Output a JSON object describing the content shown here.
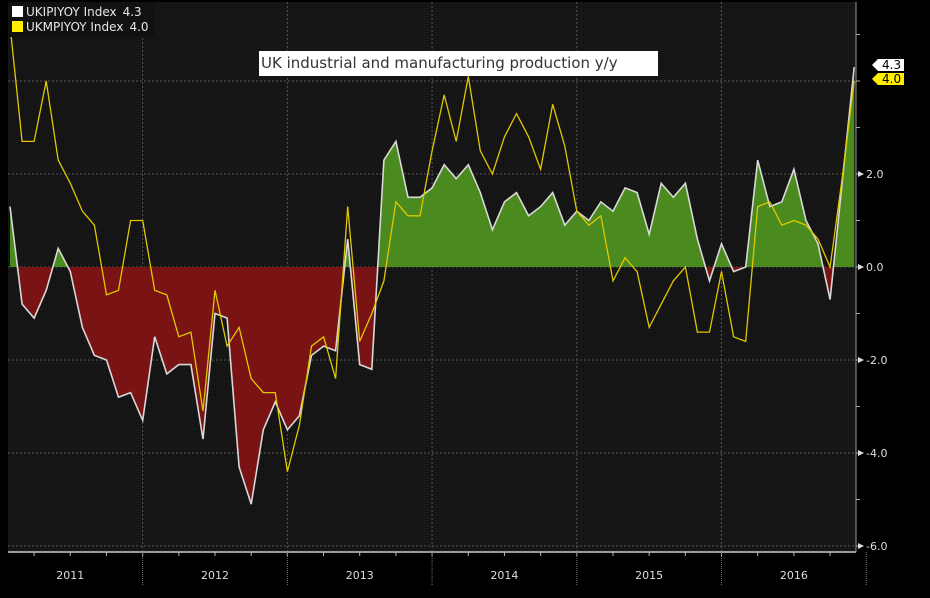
{
  "legend": [
    {
      "name": "UKIPIYOY Index",
      "value": "4.3",
      "color": "#ffffff"
    },
    {
      "name": "UKMPIYOY Index",
      "value": "4.0",
      "color": "#ffee00"
    }
  ],
  "annotation": "UK industrial and manufacturing production y/y",
  "last_value_tags": [
    {
      "label": "4.3",
      "bg": "#ffffff",
      "fg": "#000000"
    },
    {
      "label": "4.0",
      "bg": "#ffee00",
      "fg": "#000000"
    }
  ],
  "colors": {
    "background": "#000000",
    "plot_bg": "#151515",
    "positive_fill": "#4a8a1e",
    "negative_fill": "#7a1414",
    "ukipiyoy_line": "#d8d8d8",
    "ukmpiyoy_line": "#e0c800",
    "grid": "#555555",
    "axis_text": "#dddddd"
  },
  "chart_data": {
    "type": "line",
    "title": "UK industrial and manufacturing production y/y",
    "xlabel": "",
    "ylabel": "",
    "x_start": "2011-02",
    "x_end": "2016-12",
    "frequency": "monthly",
    "x_tick_labels": [
      "2011",
      "2012",
      "2013",
      "2014",
      "2015",
      "2016"
    ],
    "y_ticks": [
      4.0,
      2.0,
      0.0,
      -2.0,
      -4.0,
      -6.0
    ],
    "y_tick_labels": [
      "2.0",
      "0.0",
      "-2.0",
      "-4.0",
      "-6.0"
    ],
    "ylim": [
      -6.0,
      5.7
    ],
    "grid": true,
    "legend_position": "top-left",
    "series": [
      {
        "name": "UKIPIYOY Index",
        "style": "area-filled-vs-zero",
        "last": 4.3,
        "values": [
          1.3,
          -0.8,
          -1.1,
          -0.5,
          0.4,
          -0.1,
          -1.3,
          -1.9,
          -2.0,
          -2.8,
          -2.7,
          -3.3,
          -1.5,
          -2.3,
          -2.1,
          -2.1,
          -3.7,
          -1.0,
          -1.1,
          -4.3,
          -5.1,
          -3.5,
          -2.9,
          -3.5,
          -3.2,
          -1.9,
          -1.7,
          -1.8,
          0.6,
          -2.1,
          -2.2,
          2.3,
          2.7,
          1.5,
          1.5,
          1.7,
          2.2,
          1.9,
          2.2,
          1.6,
          0.8,
          1.4,
          1.6,
          1.1,
          1.3,
          1.6,
          0.9,
          1.2,
          1.0,
          1.4,
          1.2,
          1.7,
          1.6,
          0.7,
          1.8,
          1.5,
          1.8,
          0.6,
          -0.3,
          0.5,
          -0.1,
          0.0,
          2.3,
          1.3,
          1.4,
          2.1,
          1.0,
          0.5,
          -0.7,
          1.8,
          4.3
        ]
      },
      {
        "name": "UKMPIYOY Index",
        "style": "line",
        "last": 4.0,
        "values": [
          5.2,
          2.7,
          2.7,
          4.0,
          2.3,
          1.8,
          1.2,
          0.9,
          -0.6,
          -0.5,
          1.0,
          1.0,
          -0.5,
          -0.6,
          -1.5,
          -1.4,
          -3.1,
          -0.5,
          -1.7,
          -1.3,
          -2.4,
          -2.7,
          -2.7,
          -4.4,
          -3.4,
          -1.7,
          -1.5,
          -2.4,
          1.3,
          -1.6,
          -1.0,
          -0.3,
          1.4,
          1.1,
          1.1,
          2.5,
          3.7,
          2.7,
          4.1,
          2.5,
          2.0,
          2.8,
          3.3,
          2.8,
          2.1,
          3.5,
          2.6,
          1.2,
          0.9,
          1.1,
          -0.3,
          0.2,
          -0.1,
          -1.3,
          -0.8,
          -0.3,
          0.0,
          -1.4,
          -1.4,
          -0.1,
          -1.5,
          -1.6,
          1.3,
          1.4,
          0.9,
          1.0,
          0.9,
          0.6,
          0.0,
          1.9,
          4.0
        ]
      }
    ]
  }
}
